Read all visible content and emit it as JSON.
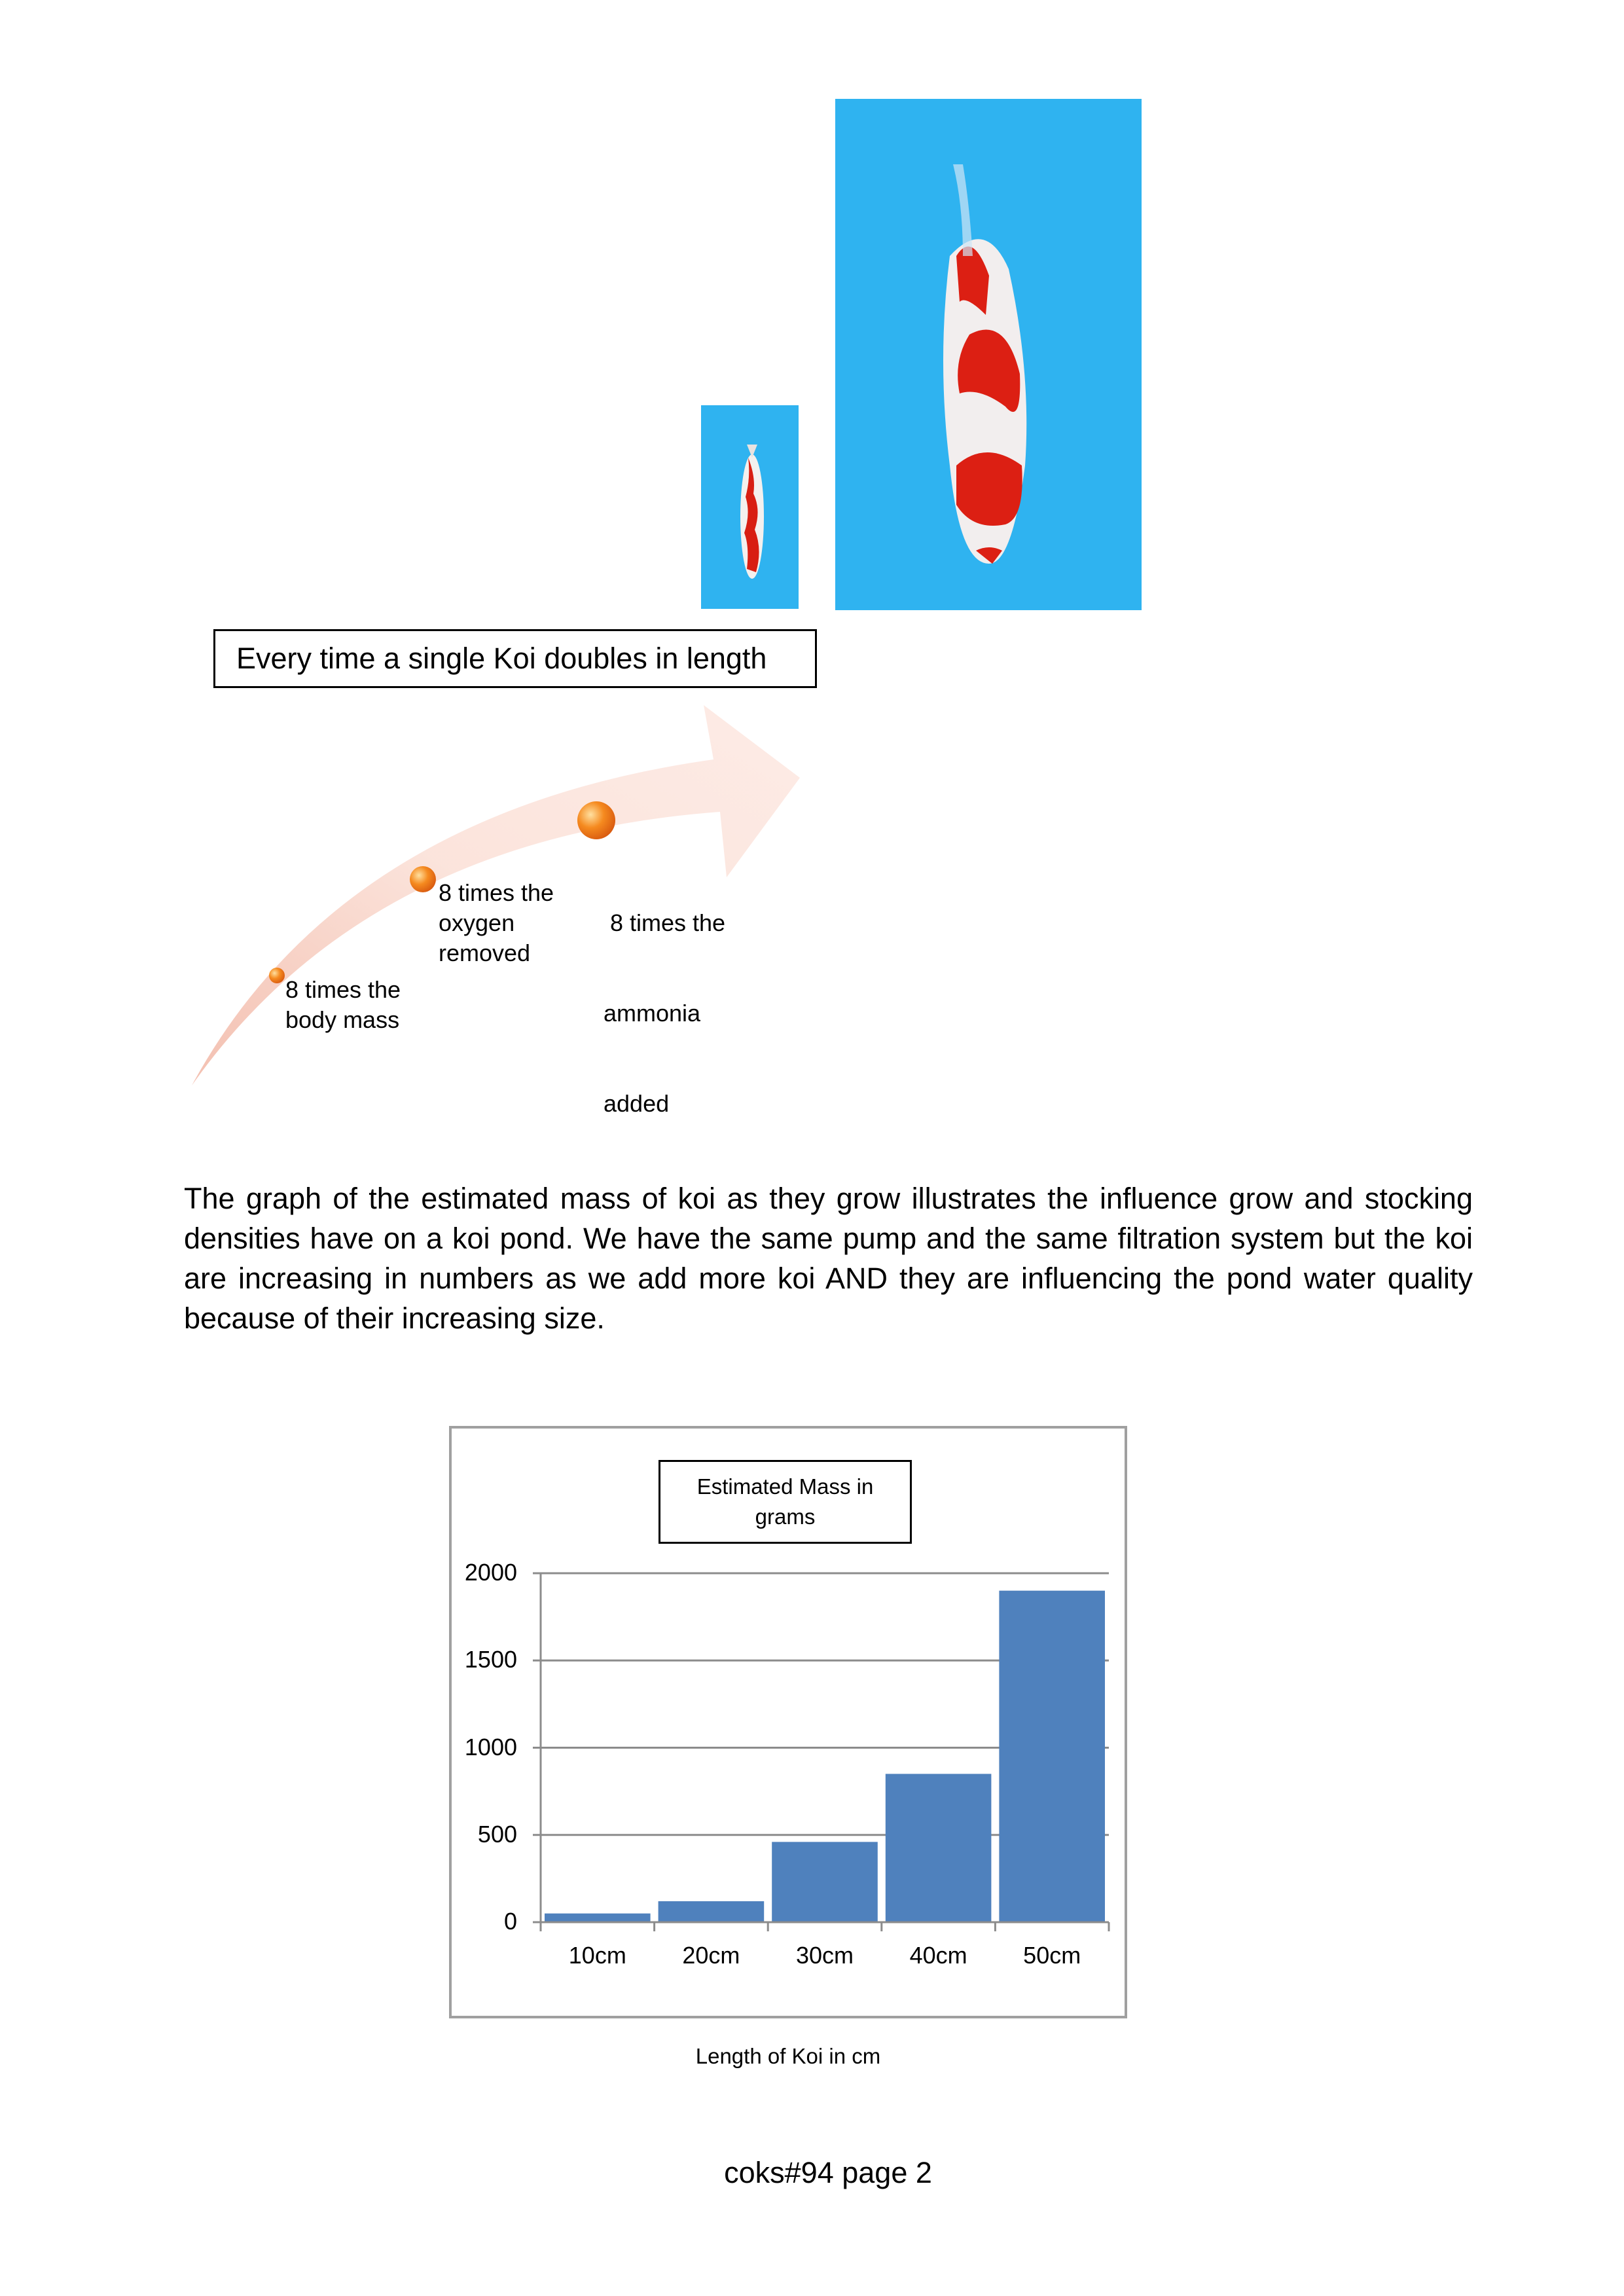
{
  "images": {
    "small_koi": {
      "alt": "small koi photo"
    },
    "large_koi": {
      "alt": "large koi photo"
    },
    "water_color": "#2fb3f0"
  },
  "caption": "Every time a single Koi doubles in length",
  "flow": {
    "steps": [
      {
        "lines": [
          "8 times the",
          "body mass"
        ]
      },
      {
        "lines": [
          "8 times the",
          "oxygen",
          "removed"
        ]
      },
      {
        "lines": [
          " 8 times the",
          "ammonia",
          "added"
        ]
      }
    ],
    "arrow_color": "#f6c9bd",
    "bullet_color": "#f07a1e"
  },
  "paragraph": "The graph of the estimated mass of koi as they grow illustrates the influence grow and stocking densities have on a koi pond. We have the same pump and the same filtration system but the koi are increasing in numbers as we add more koi AND they are influencing the pond water quality because of their increasing size.",
  "chart_data": {
    "type": "bar",
    "title": "Estimated Mass in grams",
    "title_lines": [
      "Estimated Mass in",
      "grams"
    ],
    "xlabel": "Length of Koi in cm",
    "ylabel": "",
    "categories": [
      "10cm",
      "20cm",
      "30cm",
      "40cm",
      "50cm"
    ],
    "values": [
      50,
      120,
      460,
      850,
      1900
    ],
    "ylim": [
      0,
      2000
    ],
    "yticks": [
      "0",
      "500",
      "1000",
      "1500",
      "2000"
    ],
    "grid": true,
    "legend": "none",
    "bar_color": "#4f81bd"
  },
  "footer": "coks#94 page 2"
}
